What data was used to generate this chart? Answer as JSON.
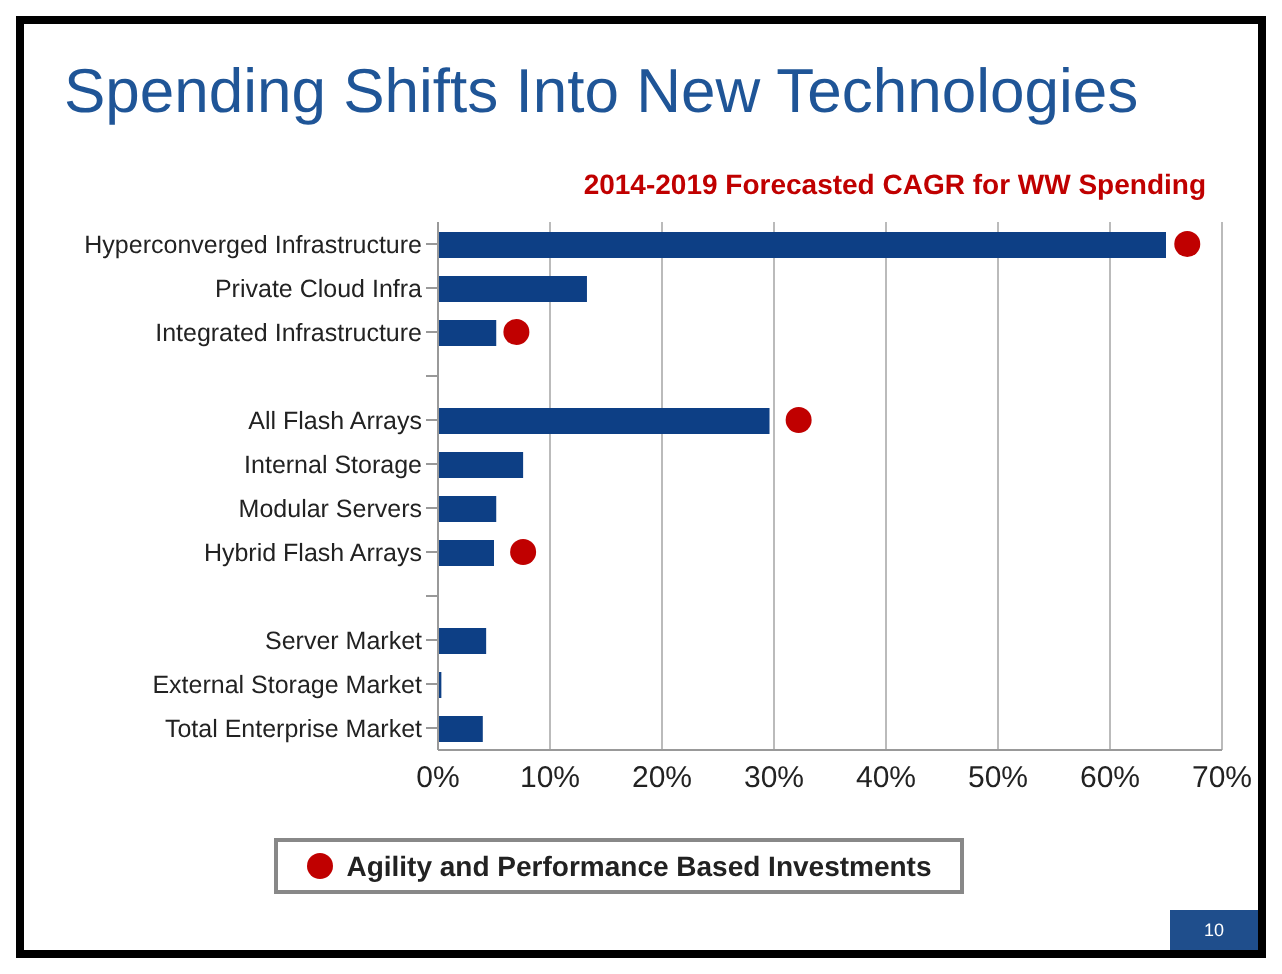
{
  "chart_data": {
    "type": "bar",
    "orientation": "horizontal",
    "title": "Spending Shifts Into New Technologies",
    "subtitle": "2014-2019 Forecasted CAGR for WW Spending",
    "categories": [
      "Hyperconverged Infrastructure",
      "Private Cloud Infra",
      "Integrated Infrastructure",
      null,
      "All Flash Arrays",
      "Internal Storage",
      "Modular Servers",
      "Hybrid Flash Arrays",
      null,
      "Server Market",
      "External Storage Market",
      "Total Enterprise Market"
    ],
    "series": [
      {
        "color": "#0d3f85",
        "values": [
          65,
          13.3,
          5.2,
          null,
          29.6,
          7.6,
          5.2,
          5.0,
          null,
          4.3,
          0.3,
          4.0
        ]
      },
      {
        "type": "scatter",
        "name": "Agility and Performance Based Investments",
        "color": "#c00000",
        "values": [
          66.9,
          null,
          7.0,
          null,
          32.2,
          null,
          null,
          7.6,
          null,
          null,
          null,
          null
        ]
      }
    ],
    "xlim": [
      0,
      70
    ],
    "xticks": [
      {
        "value": 0,
        "label": "0%"
      },
      {
        "value": 10,
        "label": "10%"
      },
      {
        "value": 20,
        "label": "20%"
      },
      {
        "value": 30,
        "label": "30%"
      },
      {
        "value": 40,
        "label": "40%"
      },
      {
        "value": 50,
        "label": "50%"
      },
      {
        "value": 60,
        "label": "60%"
      },
      {
        "value": 70,
        "label": "70%"
      }
    ],
    "grid": "x",
    "legend": "bottom",
    "marker": "circle",
    "annotations": [
      "10"
    ]
  }
}
